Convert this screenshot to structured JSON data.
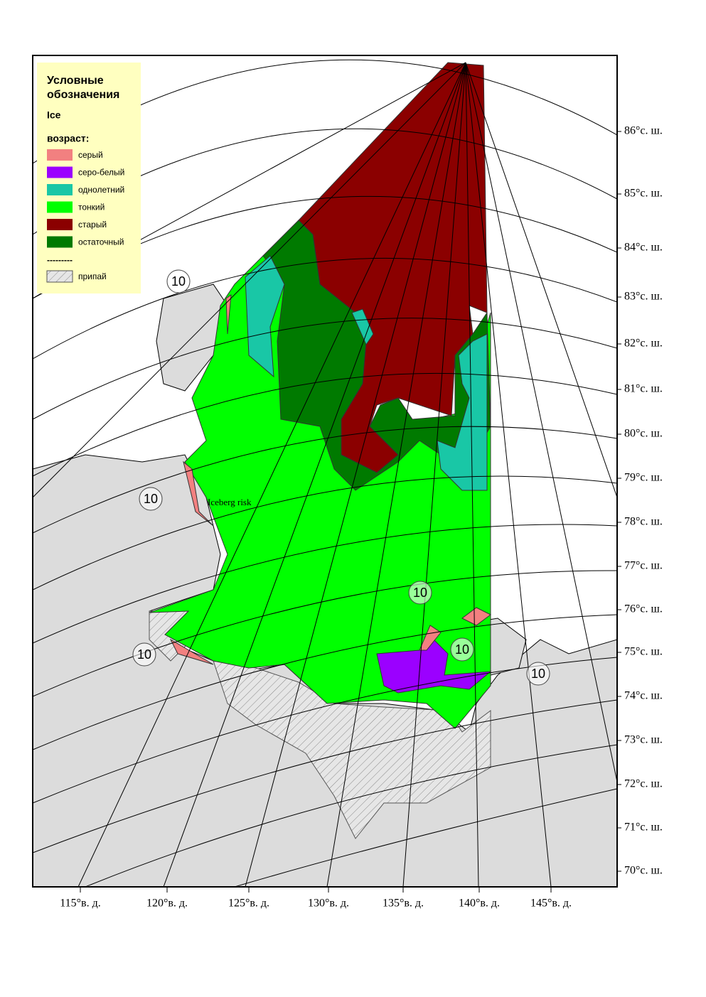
{
  "legend": {
    "title": "Условные обозначения",
    "subtitle": "Ice",
    "section": "возраст:",
    "items": [
      {
        "label": "серый",
        "color": "#f28080"
      },
      {
        "label": "серо-белый",
        "color": "#9b00ff"
      },
      {
        "label": "однолетний",
        "color": "#19c7a6"
      },
      {
        "label": "тонкий",
        "color": "#00ff00"
      },
      {
        "label": "старый",
        "color": "#8b0000"
      },
      {
        "label": "остаточный",
        "color": "#007a00"
      }
    ],
    "separator": "---------",
    "fast_ice": "припай"
  },
  "lat_labels": [
    "86°с. ш.",
    "85°с. ш.",
    "84°с. ш.",
    "83°с. ш.",
    "82°с. ш.",
    "81°с. ш.",
    "80°с. ш.",
    "79°с. ш.",
    "78°с. ш.",
    "77°с. ш.",
    "76°с. ш.",
    "75°с. ш.",
    "74°с. ш.",
    "73°с. ш.",
    "72°с. ш.",
    "71°с. ш.",
    "70°с. ш."
  ],
  "lon_labels": [
    "115°в. д.",
    "120°в. д.",
    "125°в. д.",
    "130°в. д.",
    "135°в. д.",
    "140°в. д.",
    "145°в. д."
  ],
  "annotation": "Iceberg risk",
  "ice_concentration_labels": [
    "10",
    "10",
    "10",
    "10",
    "10",
    "10"
  ]
}
